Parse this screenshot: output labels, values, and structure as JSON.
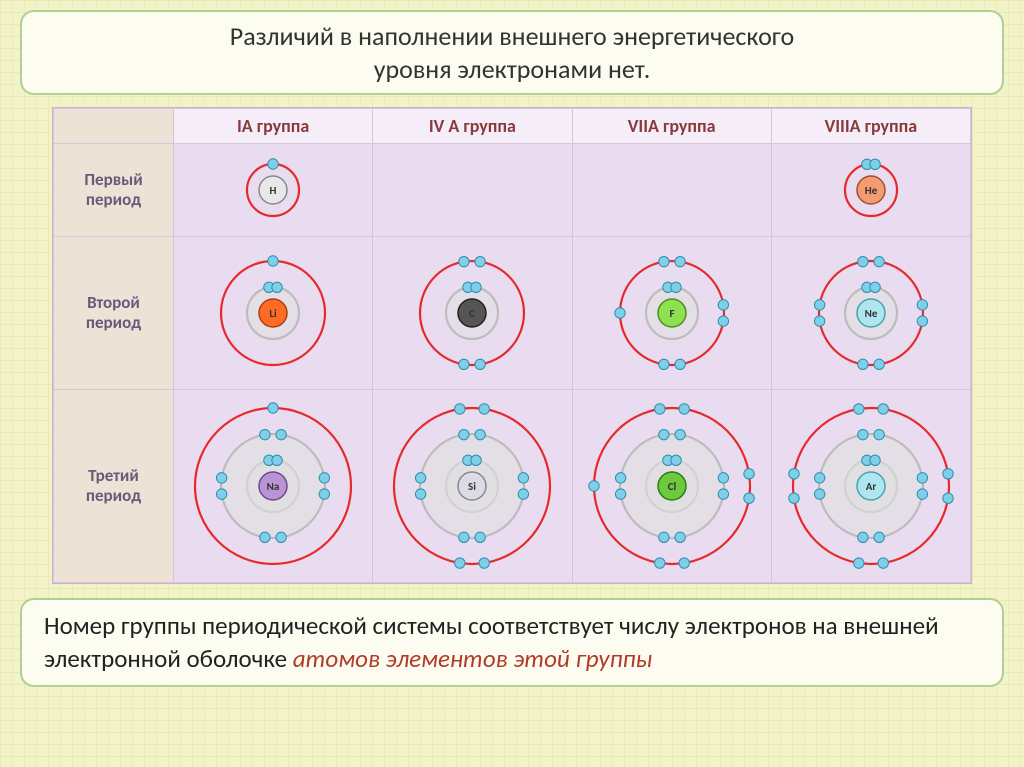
{
  "banner": {
    "line1": "Различий в наполнении внешнего энергетического",
    "line2": "уровня электронами нет."
  },
  "columns": [
    {
      "label": "IA группа"
    },
    {
      "label": "IV A группа"
    },
    {
      "label": "VIIA группа"
    },
    {
      "label": "VIIIA группа"
    }
  ],
  "periods": [
    {
      "label_line1": "Первый",
      "label_line2": "период",
      "shells": 1,
      "svg_size": 80
    },
    {
      "label_line1": "Второй",
      "label_line2": "период",
      "shells": 2,
      "svg_size": 140
    },
    {
      "label_line1": "Третий",
      "label_line2": "период",
      "shells": 3,
      "svg_size": 180
    }
  ],
  "cells": [
    [
      {
        "el": "H",
        "nucleus_fill": "#e8e8e8",
        "nucleus_stroke": "#888",
        "shell_e": [
          1
        ]
      },
      null,
      null,
      {
        "el": "He",
        "nucleus_fill": "#f59a72",
        "nucleus_stroke": "#a0502a",
        "shell_e": [
          2
        ]
      }
    ],
    [
      {
        "el": "Li",
        "nucleus_fill": "#ff6a24",
        "nucleus_stroke": "#a8400f",
        "shell_e": [
          2,
          1
        ]
      },
      {
        "el": "C",
        "nucleus_fill": "#555555",
        "nucleus_stroke": "#222",
        "shell_e": [
          2,
          4
        ]
      },
      {
        "el": "F",
        "nucleus_fill": "#8de04e",
        "nucleus_stroke": "#4a8f1f",
        "shell_e": [
          2,
          7
        ]
      },
      {
        "el": "Ne",
        "nucleus_fill": "#aee6ef",
        "nucleus_stroke": "#4aa0b0",
        "shell_e": [
          2,
          8
        ]
      }
    ],
    [
      {
        "el": "Na",
        "nucleus_fill": "#b993d6",
        "nucleus_stroke": "#6a4a8a",
        "shell_e": [
          2,
          8,
          1
        ]
      },
      {
        "el": "Si",
        "nucleus_fill": "#dcdce6",
        "nucleus_stroke": "#888",
        "shell_e": [
          2,
          8,
          4
        ]
      },
      {
        "el": "Cl",
        "nucleus_fill": "#6dc93e",
        "nucleus_stroke": "#2f7a14",
        "shell_e": [
          2,
          8,
          7
        ]
      },
      {
        "el": "Ar",
        "nucleus_fill": "#aee6ef",
        "nucleus_stroke": "#4aa0b0",
        "shell_e": [
          2,
          8,
          8
        ]
      }
    ]
  ],
  "style": {
    "outer_shell_stroke": "#e62a2a",
    "inner_shell_stroke": "#bcbcbc",
    "inner_shell_fill": "#e0e0e0",
    "shell_stroke_width": 2.2,
    "electron_radius": 5.2,
    "electron_fill": "#7fcfe8",
    "electron_stroke": "#2d8fae",
    "pair_offset_deg": 9,
    "shell_base_radius": 26,
    "shell_step": 26,
    "nucleus_radius": 14,
    "label_fontsize": 11,
    "label_color": "#333"
  },
  "footer": {
    "plain1": "Номер группы периодической системы соответствует числу электронов на внешней электронной оболочке ",
    "emph": "атомов элементов этой группы"
  }
}
